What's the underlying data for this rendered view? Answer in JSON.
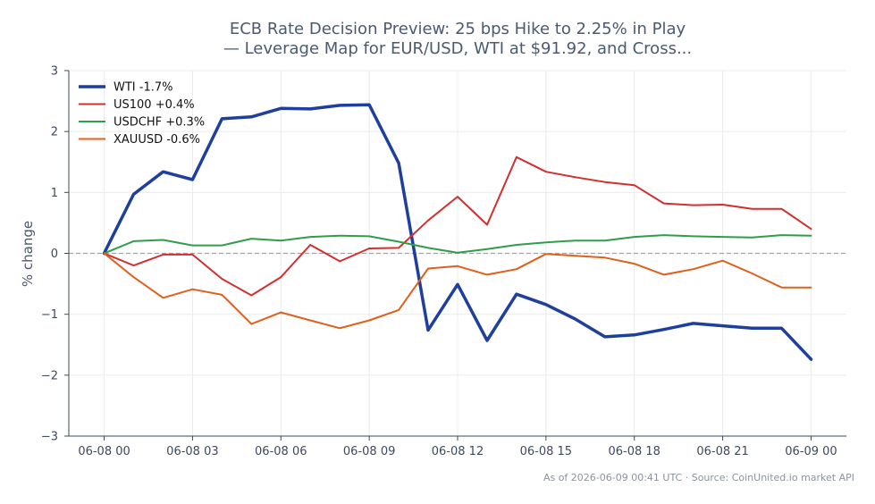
{
  "chart_data": {
    "type": "line",
    "title_line1": "ECB Rate Decision Preview: 25 bps Hike to 2.25% in Play",
    "title_line2": "— Leverage Map for EUR/USD, WTI at $91.92, and Cross...",
    "ylabel": "% change",
    "ylim": [
      -3,
      3
    ],
    "yticks": [
      3,
      2,
      1,
      0,
      -1,
      -2,
      -3
    ],
    "ytick_labels": [
      "3",
      "2",
      "1",
      "0",
      "−1",
      "−2",
      "−3"
    ],
    "x_range": [
      -1.2,
      25.2
    ],
    "xticks": [
      0,
      3,
      6,
      9,
      12,
      15,
      18,
      21,
      24
    ],
    "xtick_labels": [
      "06-08 00",
      "06-08 03",
      "06-08 06",
      "06-08 09",
      "06-08 12",
      "06-08 15",
      "06-08 18",
      "06-08 21",
      "06-09 00"
    ],
    "x": [
      0,
      1,
      2,
      3,
      4,
      5,
      6,
      7,
      8,
      9,
      10,
      11,
      12,
      13,
      14,
      15,
      16,
      17,
      18,
      19,
      20,
      21,
      22,
      23,
      24
    ],
    "baseline": 0,
    "grid": true,
    "legend_position": "top-left",
    "series": [
      {
        "name": "WTI -1.7%",
        "color": "#1f3f9e",
        "width": 3.5,
        "values": [
          0,
          0.97,
          1.34,
          1.21,
          2.21,
          2.24,
          2.38,
          2.37,
          2.43,
          2.44,
          1.48,
          -1.26,
          -0.51,
          -1.43,
          -0.67,
          -0.84,
          -1.08,
          -1.37,
          -1.34,
          -1.25,
          -1.15,
          -1.19,
          -1.23,
          -1.23,
          -1.74
        ]
      },
      {
        "name": "US100 +0.4%",
        "color": "#d32f2f",
        "width": 2,
        "values": [
          0,
          -0.2,
          -0.02,
          -0.02,
          -0.42,
          -0.69,
          -0.39,
          0.14,
          -0.13,
          0.08,
          0.09,
          0.54,
          0.93,
          0.47,
          1.58,
          1.34,
          1.25,
          1.17,
          1.12,
          0.82,
          0.79,
          0.8,
          0.73,
          0.73,
          0.4
        ]
      },
      {
        "name": "USDCHF +0.3%",
        "color": "#2e9e4a",
        "width": 2,
        "values": [
          0,
          0.2,
          0.22,
          0.13,
          0.13,
          0.24,
          0.21,
          0.27,
          0.29,
          0.28,
          0.19,
          0.09,
          0.01,
          0.07,
          0.14,
          0.18,
          0.21,
          0.21,
          0.27,
          0.3,
          0.28,
          0.27,
          0.26,
          0.3,
          0.29
        ]
      },
      {
        "name": "XAUUSD -0.6%",
        "color": "#e0601b",
        "width": 2,
        "values": [
          0,
          -0.39,
          -0.73,
          -0.59,
          -0.68,
          -1.16,
          -0.97,
          -1.1,
          -1.23,
          -1.1,
          -0.93,
          -0.25,
          -0.21,
          -0.35,
          -0.26,
          -0.01,
          -0.04,
          -0.07,
          -0.17,
          -0.35,
          -0.26,
          -0.12,
          -0.33,
          -0.56,
          -0.56
        ]
      }
    ]
  },
  "footer": "As of 2026-06-09 00:41 UTC · Source: CoinUnited.io market API"
}
